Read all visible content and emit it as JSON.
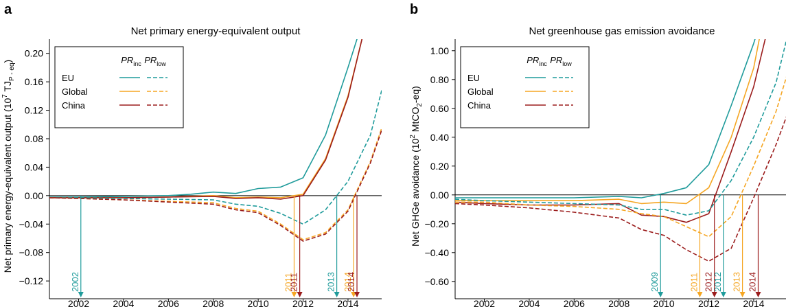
{
  "chart_data": [
    {
      "type": "line",
      "panel": "a",
      "title": "Net primary energy-equivalent output",
      "ylabel": "Net primary energy-equivalent output (10^7 TJ_P-eq)",
      "ylabel_parts": {
        "pre": "Net primary energy-equivalent output (10",
        "sup": "7",
        "mid": " TJ",
        "sub": "P - eq",
        "post": ")"
      },
      "xlim": [
        2000.7,
        2015.5
      ],
      "ylim": [
        -0.145,
        0.22
      ],
      "x_ticks": [
        2002,
        2004,
        2006,
        2008,
        2010,
        2012,
        2014
      ],
      "y_ticks": [
        -0.12,
        -0.08,
        -0.04,
        0.0,
        0.04,
        0.08,
        0.12,
        0.16,
        0.2
      ],
      "y_tick_labels": [
        "−0.12",
        "−0.08",
        "−0.04",
        "0.00",
        "0.04",
        "0.08",
        "0.12",
        "0.16",
        "0.20"
      ],
      "legend": {
        "position": "top-left",
        "header_inc": {
          "main": "PR",
          "sub": "inc"
        },
        "header_low": {
          "main": "PR",
          "sub": "low"
        },
        "entries": [
          "EU",
          "Global",
          "China"
        ]
      },
      "series": [
        {
          "region": "EU",
          "scenario": "inc",
          "color": "#1f9b9b",
          "dashed": false,
          "x": [
            2000.7,
            2002,
            2004,
            2006,
            2007,
            2008,
            2009,
            2010,
            2011,
            2012,
            2013,
            2014,
            2014.5,
            2015.5
          ],
          "y": [
            -0.002,
            -0.002,
            -0.001,
            0.0,
            0.002,
            0.005,
            0.003,
            0.01,
            0.012,
            0.025,
            0.085,
            0.18,
            0.23,
            0.3
          ]
        },
        {
          "region": "Global",
          "scenario": "inc",
          "color": "#f5a623",
          "dashed": false,
          "x": [
            2000.7,
            2002,
            2004,
            2006,
            2008,
            2009,
            2010,
            2011,
            2012,
            2013,
            2014,
            2014.7,
            2015.5
          ],
          "y": [
            -0.003,
            -0.003,
            -0.003,
            -0.002,
            0.0,
            -0.003,
            -0.002,
            -0.003,
            0.002,
            0.052,
            0.14,
            0.23,
            0.3
          ]
        },
        {
          "region": "China",
          "scenario": "inc",
          "color": "#9b1c1c",
          "dashed": false,
          "x": [
            2000.7,
            2002,
            2004,
            2006,
            2008,
            2009,
            2010,
            2011,
            2012,
            2013,
            2014,
            2014.7,
            2015.5
          ],
          "y": [
            -0.003,
            -0.003,
            -0.003,
            -0.002,
            -0.001,
            -0.004,
            -0.003,
            -0.005,
            0.0,
            0.05,
            0.138,
            0.23,
            0.3
          ]
        },
        {
          "region": "EU",
          "scenario": "low",
          "color": "#1f9b9b",
          "dashed": true,
          "x": [
            2000.7,
            2002,
            2004,
            2006,
            2008,
            2009,
            2010,
            2011,
            2012,
            2013,
            2014,
            2015,
            2015.5
          ],
          "y": [
            -0.003,
            -0.003,
            -0.004,
            -0.005,
            -0.006,
            -0.012,
            -0.015,
            -0.025,
            -0.04,
            -0.02,
            0.02,
            0.085,
            0.148
          ]
        },
        {
          "region": "Global",
          "scenario": "low",
          "color": "#f5a623",
          "dashed": true,
          "x": [
            2000.7,
            2002,
            2004,
            2006,
            2008,
            2009,
            2010,
            2011,
            2012,
            2013,
            2014,
            2015,
            2015.5
          ],
          "y": [
            -0.003,
            -0.004,
            -0.006,
            -0.008,
            -0.01,
            -0.018,
            -0.022,
            -0.04,
            -0.062,
            -0.052,
            -0.02,
            0.048,
            0.095
          ]
        },
        {
          "region": "China",
          "scenario": "low",
          "color": "#9b1c1c",
          "dashed": true,
          "x": [
            2000.7,
            2002,
            2004,
            2006,
            2008,
            2009,
            2010,
            2011,
            2012,
            2013,
            2014,
            2015,
            2015.5
          ],
          "y": [
            -0.003,
            -0.004,
            -0.006,
            -0.009,
            -0.012,
            -0.02,
            -0.024,
            -0.042,
            -0.064,
            -0.054,
            -0.022,
            0.046,
            0.092
          ]
        }
      ],
      "markers": [
        {
          "label": "2002",
          "x": 2002.1,
          "color": "#1f9b9b",
          "y_from": 0.0
        },
        {
          "label": "2011",
          "x": 2011.6,
          "color": "#f5a623",
          "y_from": 0.0
        },
        {
          "label": "2011",
          "x": 2011.85,
          "color": "#9b1c1c",
          "y_from": 0.0
        },
        {
          "label": "2013",
          "x": 2013.5,
          "color": "#1f9b9b",
          "y_from": 0.0
        },
        {
          "label": "2014",
          "x": 2014.25,
          "color": "#f5a623",
          "y_from": 0.0
        },
        {
          "label": "2014",
          "x": 2014.4,
          "color": "#9b1c1c",
          "y_from": 0.0
        }
      ]
    },
    {
      "type": "line",
      "panel": "b",
      "title": "Net greenhouse gas emission avoidance",
      "ylabel": "Net GHGe avoidance (10^2 MtCO2-eq)",
      "ylabel_parts": {
        "pre": "Net GHGe avoidance (10",
        "sup": "2",
        "mid": " MtCO",
        "sub": "2",
        "post": "-eq)"
      },
      "xlim": [
        2000.7,
        2015.5
      ],
      "ylim": [
        -0.72,
        1.08
      ],
      "x_ticks": [
        2002,
        2004,
        2006,
        2008,
        2010,
        2012,
        2014
      ],
      "y_ticks": [
        -0.6,
        -0.4,
        -0.2,
        0.0,
        0.2,
        0.4,
        0.6,
        0.8,
        1.0
      ],
      "y_tick_labels": [
        "−0.60",
        "−0.40",
        "−0.20",
        "0.00",
        "0.20",
        "0.40",
        "0.60",
        "0.80",
        "1.00"
      ],
      "legend": {
        "position": "top-left",
        "header_inc": {
          "main": "PR",
          "sub": "inc"
        },
        "header_low": {
          "main": "PR",
          "sub": "low"
        },
        "entries": [
          "EU",
          "Global",
          "China"
        ]
      },
      "series": [
        {
          "region": "EU",
          "scenario": "inc",
          "color": "#1f9b9b",
          "dashed": false,
          "x": [
            2000.7,
            2002,
            2004,
            2006,
            2008,
            2009,
            2010,
            2011,
            2012,
            2013,
            2014,
            2014.5
          ],
          "y": [
            -0.02,
            -0.02,
            -0.02,
            -0.02,
            -0.01,
            -0.02,
            0.01,
            0.05,
            0.21,
            0.62,
            1.05,
            1.3
          ]
        },
        {
          "region": "Global",
          "scenario": "inc",
          "color": "#f5a623",
          "dashed": false,
          "x": [
            2000.7,
            2002,
            2004,
            2006,
            2008,
            2009,
            2010,
            2011,
            2012,
            2013,
            2014,
            2014.4
          ],
          "y": [
            -0.04,
            -0.04,
            -0.04,
            -0.04,
            -0.03,
            -0.06,
            -0.05,
            -0.06,
            0.05,
            0.4,
            0.88,
            1.2
          ]
        },
        {
          "region": "China",
          "scenario": "inc",
          "color": "#9b1c1c",
          "dashed": false,
          "x": [
            2000.7,
            2002,
            2004,
            2006,
            2008,
            2009,
            2010,
            2011,
            2012,
            2013,
            2014,
            2014.7
          ],
          "y": [
            -0.05,
            -0.06,
            -0.07,
            -0.07,
            -0.06,
            -0.14,
            -0.15,
            -0.19,
            -0.13,
            0.3,
            0.75,
            1.2
          ]
        },
        {
          "region": "EU",
          "scenario": "low",
          "color": "#1f9b9b",
          "dashed": true,
          "x": [
            2000.7,
            2002,
            2004,
            2006,
            2008,
            2009,
            2010,
            2011,
            2012,
            2013,
            2014,
            2015,
            2015.5
          ],
          "y": [
            -0.03,
            -0.04,
            -0.05,
            -0.06,
            -0.07,
            -0.1,
            -0.1,
            -0.14,
            -0.11,
            0.1,
            0.4,
            0.78,
            1.1
          ]
        },
        {
          "region": "Global",
          "scenario": "low",
          "color": "#f5a623",
          "dashed": true,
          "x": [
            2000.7,
            2002,
            2004,
            2006,
            2008,
            2009,
            2010,
            2011,
            2012,
            2013,
            2014,
            2015,
            2015.5
          ],
          "y": [
            -0.05,
            -0.05,
            -0.07,
            -0.08,
            -0.1,
            -0.13,
            -0.15,
            -0.22,
            -0.29,
            -0.15,
            0.2,
            0.58,
            0.84
          ]
        },
        {
          "region": "China",
          "scenario": "low",
          "color": "#9b1c1c",
          "dashed": true,
          "x": [
            2000.7,
            2002,
            2004,
            2006,
            2008,
            2009,
            2010,
            2011,
            2012,
            2013,
            2014,
            2015,
            2015.5
          ],
          "y": [
            -0.06,
            -0.07,
            -0.09,
            -0.12,
            -0.16,
            -0.24,
            -0.28,
            -0.38,
            -0.46,
            -0.37,
            -0.02,
            0.35,
            0.56
          ]
        }
      ],
      "markers": [
        {
          "label": "2009",
          "x": 2009.85,
          "color": "#1f9b9b",
          "y_from": 0.0
        },
        {
          "label": "2011",
          "x": 2011.6,
          "color": "#f5a623",
          "y_from": 0.0
        },
        {
          "label": "2012",
          "x": 2012.25,
          "color": "#9b1c1c",
          "y_from": 0.0
        },
        {
          "label": "2012",
          "x": 2012.65,
          "color": "#1f9b9b",
          "y_from": 0.0
        },
        {
          "label": "2013",
          "x": 2013.5,
          "color": "#f5a623",
          "y_from": 0.0
        },
        {
          "label": "2014",
          "x": 2014.2,
          "color": "#9b1c1c",
          "y_from": 0.0
        }
      ]
    }
  ]
}
